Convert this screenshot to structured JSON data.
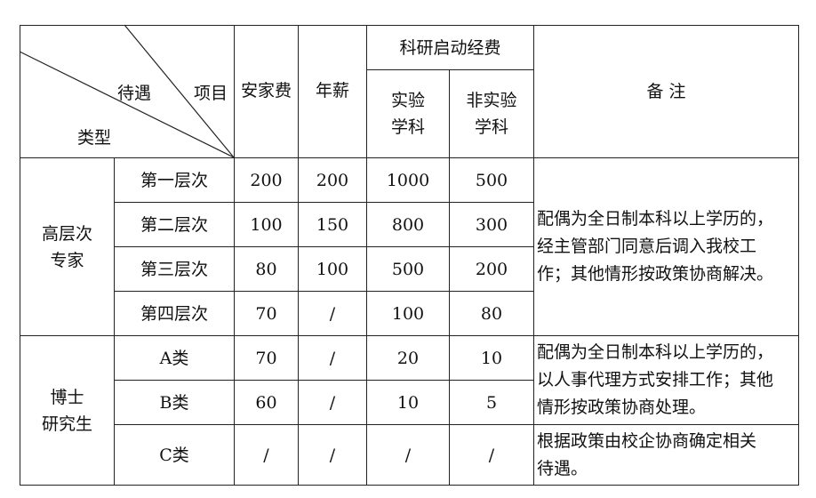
{
  "header": {
    "corner_item": "项目",
    "corner_treatment": "待遇",
    "corner_type": "类型",
    "col_settle": "安家费",
    "col_salary": "年薪",
    "col_research": "科研启动经费",
    "col_exp": [
      "实验",
      "学科"
    ],
    "col_nonexp": [
      "非实验",
      "学科"
    ],
    "col_notes": "备 注"
  },
  "groups": [
    {
      "name": [
        "高层次",
        "专家"
      ],
      "rows": [
        {
          "level": "第一层次",
          "settle": "200",
          "salary": "200",
          "exp": "1000",
          "nonexp": "500"
        },
        {
          "level": "第二层次",
          "settle": "100",
          "salary": "150",
          "exp": "800",
          "nonexp": "300"
        },
        {
          "level": "第三层次",
          "settle": "80",
          "salary": "100",
          "exp": "500",
          "nonexp": "200"
        },
        {
          "level": "第四层次",
          "settle": "70",
          "salary": "/",
          "exp": "100",
          "nonexp": "80"
        }
      ],
      "note": [
        "配偶为全日制本科以上学历的，",
        "经主管部门同意后调入我校工",
        "作；其他情形按政策协商解决。"
      ]
    },
    {
      "name": [
        "博士",
        "研究生"
      ],
      "rows": [
        {
          "level": "A类",
          "settle": "70",
          "salary": "/",
          "exp": "20",
          "nonexp": "10"
        },
        {
          "level": "B类",
          "settle": "60",
          "salary": "/",
          "exp": "10",
          "nonexp": "5"
        },
        {
          "level": "C类",
          "settle": "/",
          "salary": "/",
          "exp": "/",
          "nonexp": "/"
        }
      ],
      "note_ab": [
        "配偶为全日制本科以上学历的，",
        "以人事代理方式安排工作；其他",
        "情形按政策协商处理。"
      ],
      "note_c": [
        "根据政策由校企协商确定相关",
        "待遇。"
      ]
    }
  ]
}
